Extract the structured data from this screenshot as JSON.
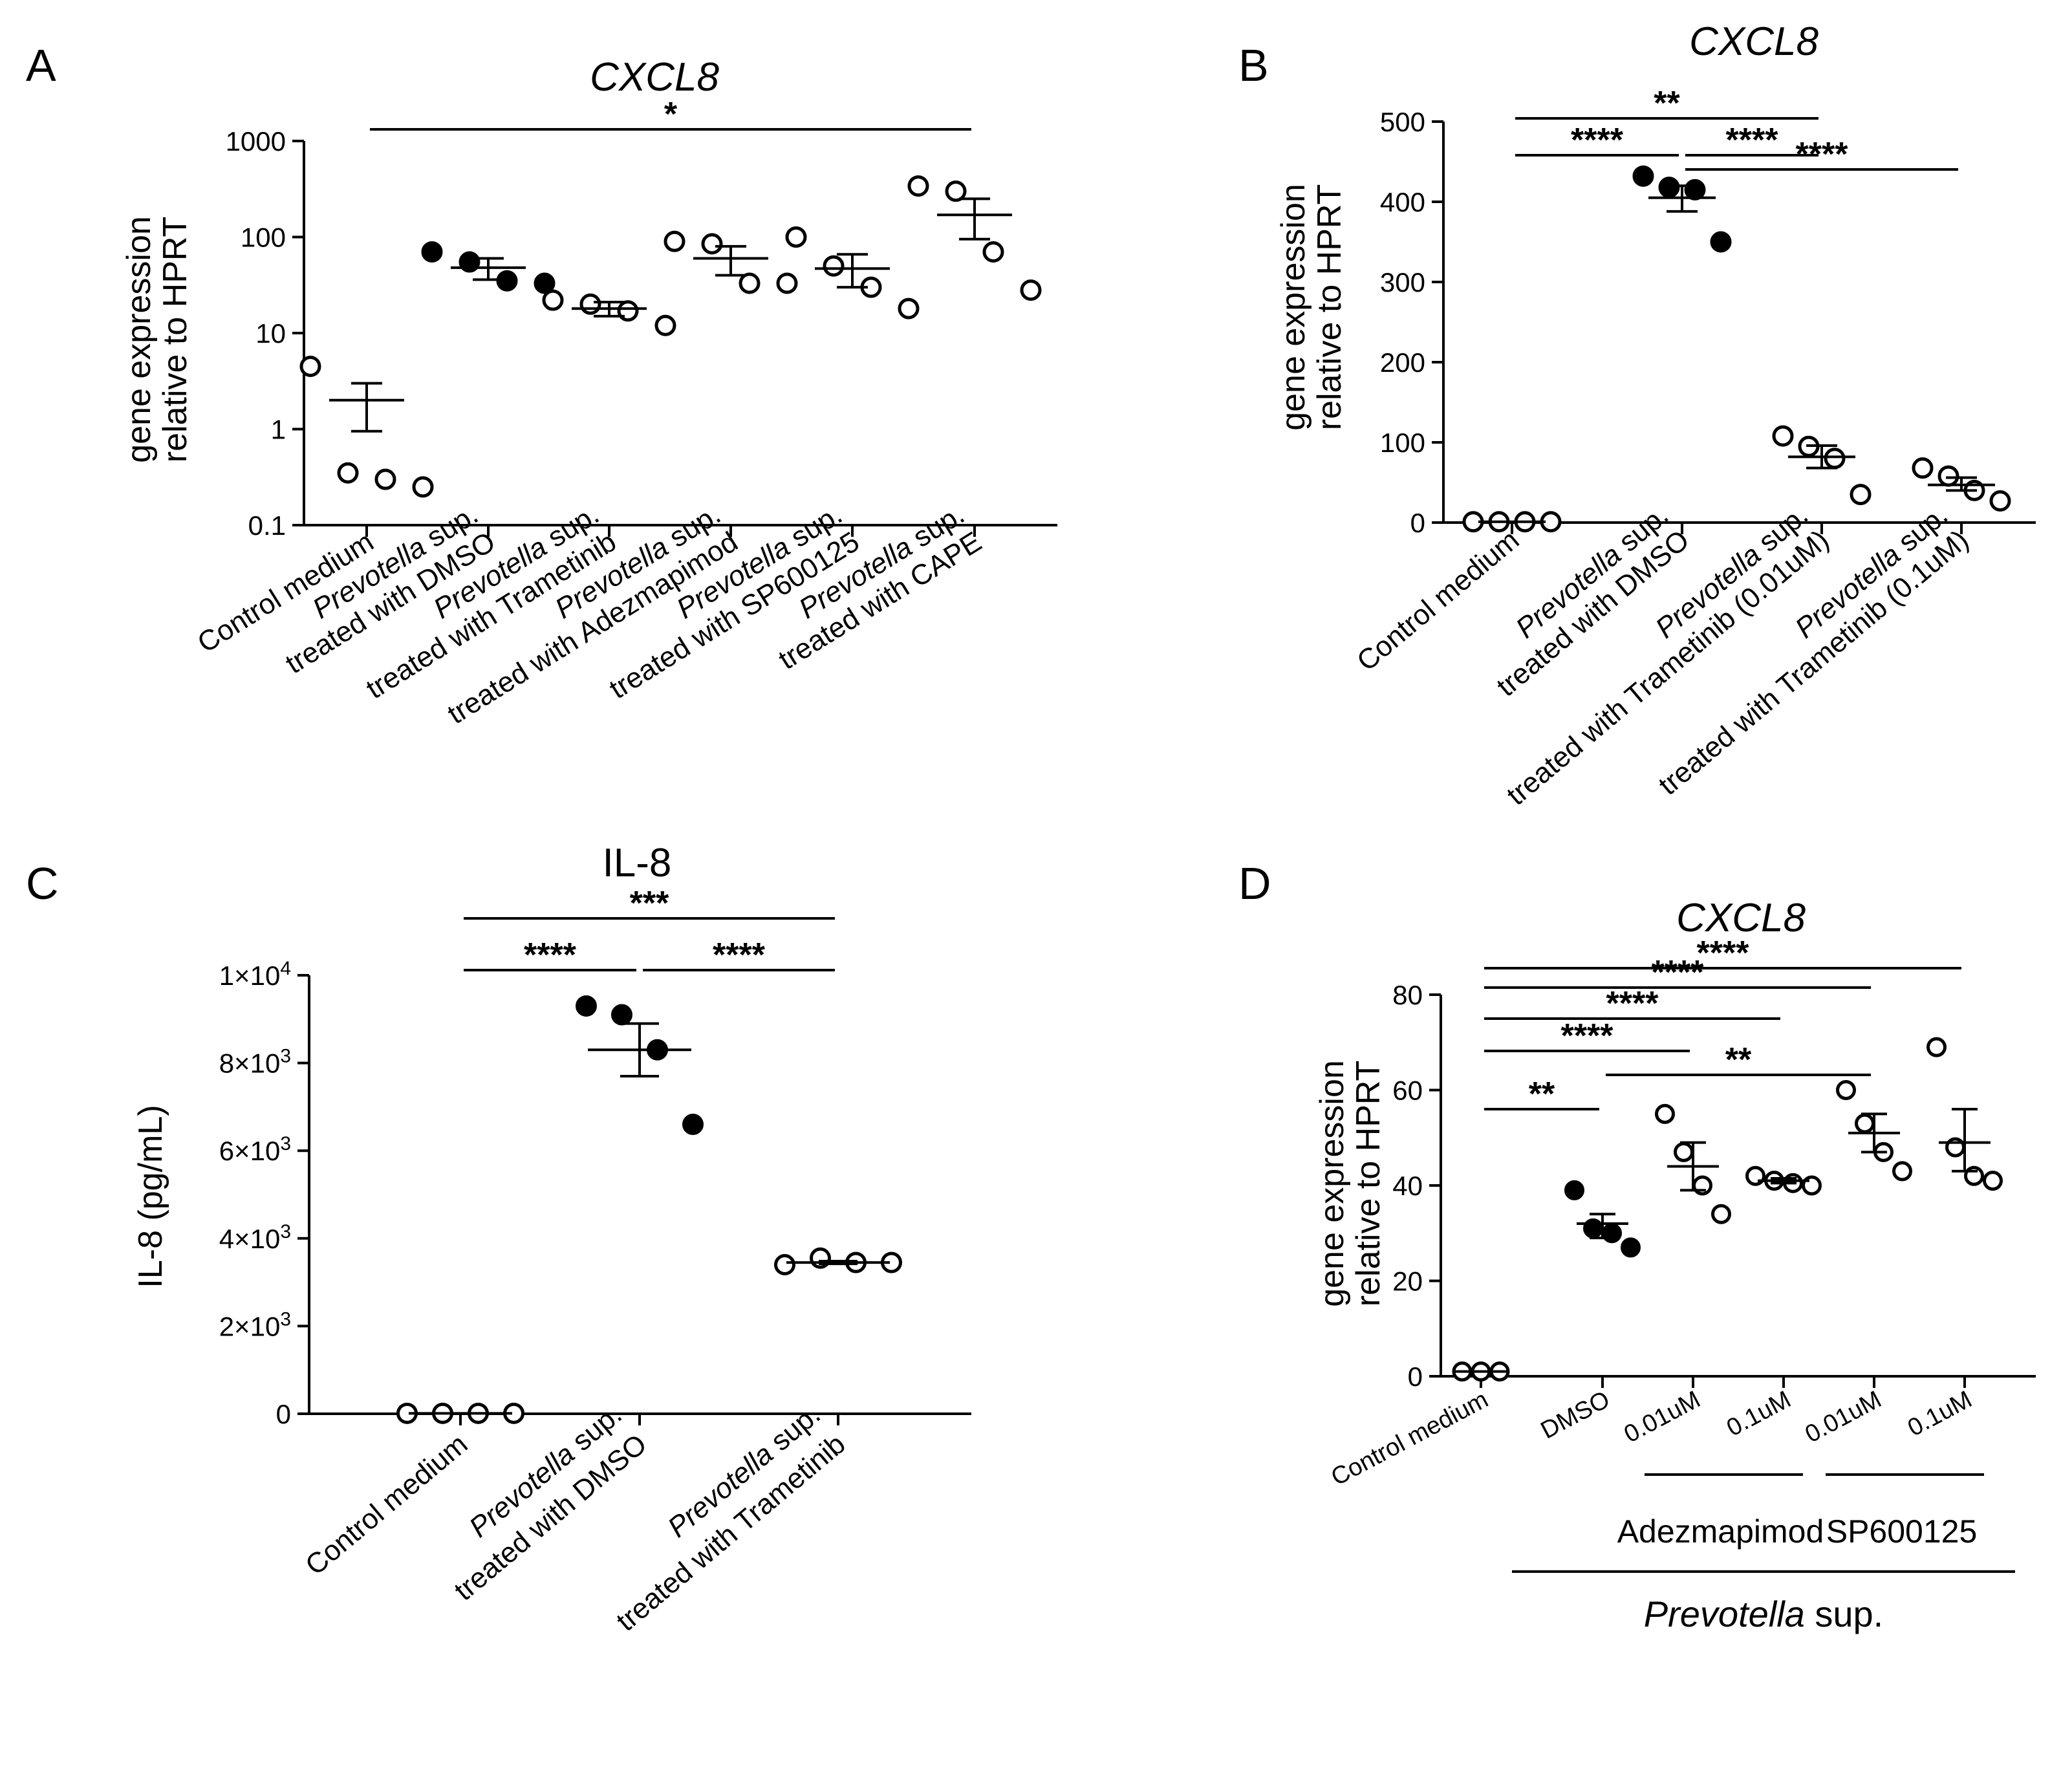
{
  "chart_data": [
    {
      "panel": "A",
      "type": "scatter",
      "title": "CXCL8",
      "ylabel": [
        "gene expression",
        "relative to HPRT"
      ],
      "yscale": "log",
      "ylim": [
        0.1,
        1000
      ],
      "yticks": [
        {
          "v": 0.1,
          "t": "0.1"
        },
        {
          "v": 1,
          "t": "1"
        },
        {
          "v": 10,
          "t": "10"
        },
        {
          "v": 100,
          "t": "100"
        },
        {
          "v": 1000,
          "t": "1000"
        }
      ],
      "categories": [
        {
          "lines": [
            {
              "parts": [
                {
                  "t": "Control medium"
                }
              ]
            }
          ],
          "filled": false,
          "points": [
            4.5,
            0.35,
            0.3,
            0.25
          ],
          "mean": 2.0,
          "sem": [
            0.95,
            3.0
          ]
        },
        {
          "lines": [
            {
              "parts": [
                {
                  "t": "Prevotella",
                  "i": true
                },
                {
                  "t": " sup."
                }
              ]
            },
            {
              "parts": [
                {
                  "t": "treated with DMSO"
                }
              ]
            }
          ],
          "filled": true,
          "points": [
            70,
            55,
            35,
            33
          ],
          "mean": 48,
          "sem": [
            36,
            60
          ]
        },
        {
          "lines": [
            {
              "parts": [
                {
                  "t": "Prevotella",
                  "i": true
                },
                {
                  "t": " sup."
                }
              ]
            },
            {
              "parts": [
                {
                  "t": "treated with Trametinib"
                }
              ]
            }
          ],
          "filled": false,
          "points": [
            22,
            20,
            17,
            12
          ],
          "mean": 18,
          "sem": [
            15,
            21
          ]
        },
        {
          "lines": [
            {
              "parts": [
                {
                  "t": "Prevotella",
                  "i": true
                },
                {
                  "t": " sup."
                }
              ]
            },
            {
              "parts": [
                {
                  "t": "treated with Adezmapimod"
                }
              ]
            }
          ],
          "filled": false,
          "points": [
            90,
            85,
            33,
            33
          ],
          "mean": 60,
          "sem": [
            40,
            80
          ]
        },
        {
          "lines": [
            {
              "parts": [
                {
                  "t": "Prevotella",
                  "i": true
                },
                {
                  "t": " sup."
                }
              ]
            },
            {
              "parts": [
                {
                  "t": "treated with SP600125"
                }
              ]
            }
          ],
          "filled": false,
          "points": [
            100,
            50,
            30,
            18
          ],
          "mean": 47,
          "sem": [
            30,
            66
          ]
        },
        {
          "lines": [
            {
              "parts": [
                {
                  "t": "Prevotella",
                  "i": true
                },
                {
                  "t": " sup."
                }
              ]
            },
            {
              "parts": [
                {
                  "t": "treated with CAPE"
                }
              ]
            }
          ],
          "filled": false,
          "points": [
            340,
            300,
            70,
            28
          ],
          "mean": 170,
          "sem": [
            95,
            250
          ]
        }
      ],
      "brackets": [
        {
          "from": 0,
          "to": 5,
          "label": "*"
        }
      ]
    },
    {
      "panel": "B",
      "type": "scatter",
      "title": "CXCL8",
      "ylabel": [
        "gene expression",
        "relative to HPRT"
      ],
      "yscale": "linear",
      "ylim": [
        0,
        500
      ],
      "yticks": [
        {
          "v": 0,
          "t": "0"
        },
        {
          "v": 100,
          "t": "100"
        },
        {
          "v": 200,
          "t": "200"
        },
        {
          "v": 300,
          "t": "300"
        },
        {
          "v": 400,
          "t": "400"
        },
        {
          "v": 500,
          "t": "500"
        }
      ],
      "categories": [
        {
          "lines": [
            {
              "parts": [
                {
                  "t": "Control medium"
                }
              ]
            }
          ],
          "filled": false,
          "points": [
            1,
            1,
            1,
            1
          ],
          "mean": 1,
          "sem": [
            1,
            1
          ]
        },
        {
          "lines": [
            {
              "parts": [
                {
                  "t": "Prevotella",
                  "i": true
                },
                {
                  "t": " sup."
                }
              ]
            },
            {
              "parts": [
                {
                  "t": "treated with DMSO"
                }
              ]
            }
          ],
          "filled": true,
          "points": [
            432,
            418,
            415,
            350
          ],
          "mean": 405,
          "sem": [
            388,
            420
          ]
        },
        {
          "lines": [
            {
              "parts": [
                {
                  "t": "Prevotella",
                  "i": true
                },
                {
                  "t": " sup."
                }
              ]
            },
            {
              "parts": [
                {
                  "t": "treated with Trametinib (0.01uM)"
                }
              ]
            }
          ],
          "filled": false,
          "points": [
            108,
            95,
            80,
            35
          ],
          "mean": 82,
          "sem": [
            68,
            96
          ]
        },
        {
          "lines": [
            {
              "parts": [
                {
                  "t": "Prevotella",
                  "i": true
                },
                {
                  "t": " sup."
                }
              ]
            },
            {
              "parts": [
                {
                  "t": "treated with Trametinib (0.1uM)"
                }
              ]
            }
          ],
          "filled": false,
          "points": [
            68,
            58,
            40,
            27
          ],
          "mean": 47,
          "sem": [
            40,
            56
          ]
        }
      ],
      "brackets": [
        {
          "from": 0,
          "to": 2,
          "label": "**"
        },
        {
          "from": 0,
          "to": 1,
          "label": "****"
        },
        {
          "from": 1,
          "to": 2,
          "label": "****"
        },
        {
          "from": 1,
          "to": 3,
          "label": "****"
        }
      ]
    },
    {
      "panel": "C",
      "type": "scatter",
      "title": "IL-8",
      "ylabel": [
        "IL-8 (pg/mL)"
      ],
      "yscale": "linear",
      "ylim": [
        0,
        10000
      ],
      "yticks": [
        {
          "v": 0,
          "t": "0"
        },
        {
          "v": 2000,
          "m": "2",
          "e": "3"
        },
        {
          "v": 4000,
          "m": "4",
          "e": "3"
        },
        {
          "v": 6000,
          "m": "6",
          "e": "3"
        },
        {
          "v": 8000,
          "m": "8",
          "e": "3"
        },
        {
          "v": 10000,
          "m": "1",
          "e": "4"
        }
      ],
      "categories": [
        {
          "lines": [
            {
              "parts": [
                {
                  "t": "Control medium"
                }
              ]
            }
          ],
          "filled": false,
          "points": [
            10,
            10,
            10,
            10
          ],
          "mean": 10,
          "sem": [
            10,
            10
          ]
        },
        {
          "lines": [
            {
              "parts": [
                {
                  "t": "Prevotella",
                  "i": true
                },
                {
                  "t": " sup."
                }
              ]
            },
            {
              "parts": [
                {
                  "t": "treated with DMSO"
                }
              ]
            }
          ],
          "filled": true,
          "points": [
            9300,
            9100,
            8300,
            6600
          ],
          "mean": 8300,
          "sem": [
            7700,
            8900
          ]
        },
        {
          "lines": [
            {
              "parts": [
                {
                  "t": "Prevotella",
                  "i": true
                },
                {
                  "t": " sup."
                }
              ]
            },
            {
              "parts": [
                {
                  "t": "treated with Trametinib"
                }
              ]
            }
          ],
          "filled": false,
          "points": [
            3400,
            3550,
            3450,
            3450
          ],
          "mean": 3450,
          "sem": [
            3420,
            3480
          ]
        }
      ],
      "brackets": [
        {
          "from": 0,
          "to": 2,
          "label": "***"
        },
        {
          "from": 0,
          "to": 1,
          "label": "****"
        },
        {
          "from": 1,
          "to": 2,
          "label": "****"
        }
      ]
    },
    {
      "panel": "D",
      "type": "scatter",
      "title": "CXCL8",
      "ylabel": [
        "gene expression",
        "relative to HPRT"
      ],
      "yscale": "linear",
      "ylim": [
        0,
        80
      ],
      "yticks": [
        {
          "v": 0,
          "t": "0"
        },
        {
          "v": 20,
          "t": "20"
        },
        {
          "v": 40,
          "t": "40"
        },
        {
          "v": 60,
          "t": "60"
        },
        {
          "v": 80,
          "t": "80"
        }
      ],
      "categories": [
        {
          "lines": [
            {
              "parts": [
                {
                  "t": "Control medium"
                }
              ]
            }
          ],
          "filled": false,
          "points": [
            1,
            1,
            1
          ],
          "mean": 1,
          "sem": [
            1,
            1
          ]
        },
        {
          "lines": [
            {
              "parts": [
                {
                  "t": "DMSO"
                }
              ]
            }
          ],
          "filled": true,
          "points": [
            39,
            31,
            30,
            27
          ],
          "mean": 32,
          "sem": [
            29,
            34
          ]
        },
        {
          "lines": [
            {
              "parts": [
                {
                  "t": "0.01uM"
                }
              ]
            }
          ],
          "filled": false,
          "points": [
            55,
            47,
            40,
            34
          ],
          "mean": 44,
          "sem": [
            39,
            49
          ]
        },
        {
          "lines": [
            {
              "parts": [
                {
                  "t": "0.1uM"
                }
              ]
            }
          ],
          "filled": false,
          "points": [
            42,
            41,
            40.5,
            40
          ],
          "mean": 41,
          "sem": [
            40.5,
            41.5
          ]
        },
        {
          "lines": [
            {
              "parts": [
                {
                  "t": "0.01uM"
                }
              ]
            }
          ],
          "filled": false,
          "points": [
            60,
            53,
            47,
            43
          ],
          "mean": 51,
          "sem": [
            47,
            55
          ]
        },
        {
          "lines": [
            {
              "parts": [
                {
                  "t": "0.1uM"
                }
              ]
            }
          ],
          "filled": false,
          "points": [
            69,
            48,
            42,
            41
          ],
          "mean": 49,
          "sem": [
            43,
            56
          ]
        }
      ],
      "brackets": [
        {
          "from": 0,
          "to": 5,
          "label": "****"
        },
        {
          "from": 0,
          "to": 4,
          "label": "****"
        },
        {
          "from": 0,
          "to": 3,
          "label": "****"
        },
        {
          "from": 0,
          "to": 2,
          "label": "****"
        },
        {
          "from": 1,
          "to": 4,
          "label": "**"
        },
        {
          "from": 0,
          "to": 1,
          "label": "**"
        }
      ],
      "groups": [
        {
          "from": 2,
          "to": 3,
          "label": "Adezmapimod"
        },
        {
          "from": 4,
          "to": 5,
          "label": "SP600125"
        }
      ],
      "supergroup": {
        "from": 1,
        "to": 5,
        "parts": [
          {
            "t": "Prevotella",
            "i": true
          },
          {
            "t": " sup."
          }
        ]
      }
    }
  ]
}
